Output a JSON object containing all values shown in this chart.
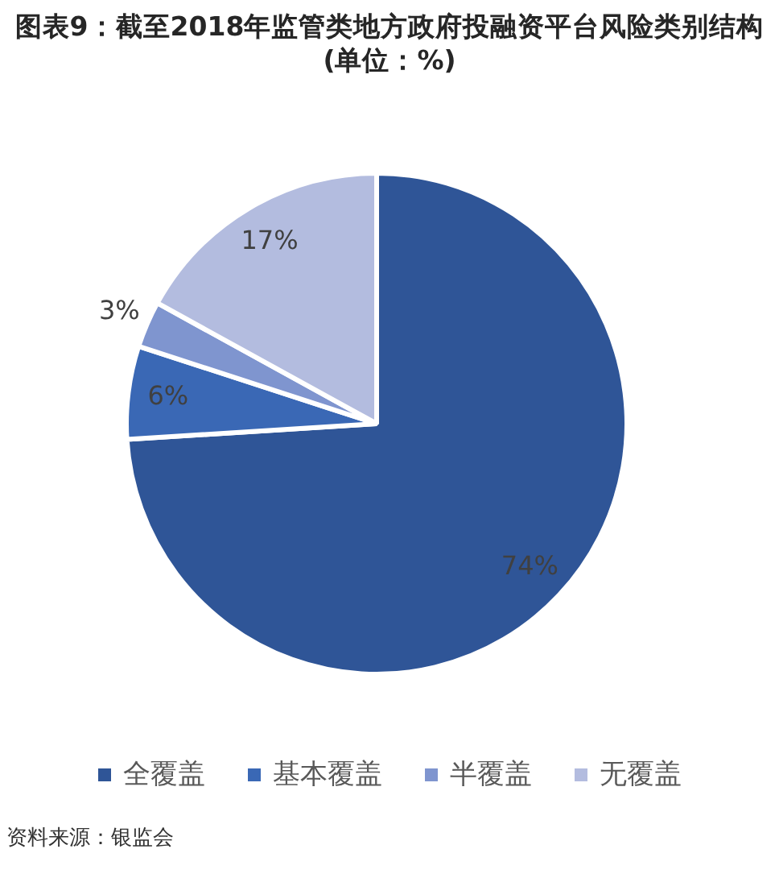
{
  "chart_data": {
    "type": "pie",
    "title": "图表9：截至2018年监管类地方政府投融资平台风险类别结构",
    "subtitle": "(单位：%)",
    "categories": [
      "全覆盖",
      "基本覆盖",
      "半覆盖",
      "无覆盖"
    ],
    "values": [
      74,
      6,
      3,
      17
    ],
    "colors": [
      "#2f5597",
      "#3a68b5",
      "#7f95cf",
      "#b3bcdf"
    ],
    "value_labels": [
      "74%",
      "6%",
      "3%",
      "17%"
    ],
    "legend": "bottom",
    "annotations": [
      "资料来源：银监会"
    ]
  }
}
